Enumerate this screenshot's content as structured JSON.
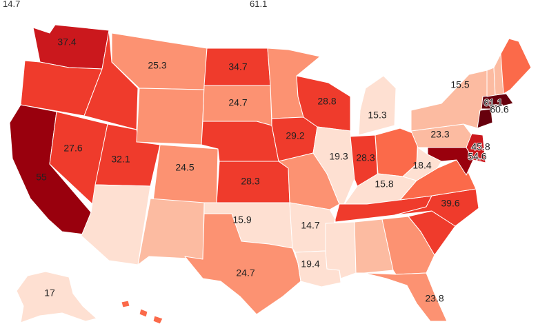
{
  "legend": {
    "min": "14.7",
    "max": "61.1"
  },
  "colors": {
    "scale": [
      "#fee0d2",
      "#fcbba1",
      "#fc9272",
      "#fb6a4a",
      "#ef3b2c",
      "#cb181d",
      "#99000d",
      "#67000d"
    ],
    "border": "#ffffff"
  },
  "states": [
    {
      "id": "WA",
      "value": "37.4"
    },
    {
      "id": "OR",
      "value": ""
    },
    {
      "id": "CA",
      "value": "55"
    },
    {
      "id": "ID",
      "value": ""
    },
    {
      "id": "NV",
      "value": "27.6"
    },
    {
      "id": "UT",
      "value": "32.1"
    },
    {
      "id": "AZ",
      "value": ""
    },
    {
      "id": "MT",
      "value": "25.3"
    },
    {
      "id": "WY",
      "value": ""
    },
    {
      "id": "CO",
      "value": "24.5"
    },
    {
      "id": "NM",
      "value": ""
    },
    {
      "id": "ND",
      "value": "34.7"
    },
    {
      "id": "SD",
      "value": "24.7"
    },
    {
      "id": "NE",
      "value": ""
    },
    {
      "id": "KS",
      "value": "28.3"
    },
    {
      "id": "OK",
      "value": "15.9"
    },
    {
      "id": "TX",
      "value": "24.7"
    },
    {
      "id": "MN",
      "value": ""
    },
    {
      "id": "IA",
      "value": "29.2"
    },
    {
      "id": "MO",
      "value": ""
    },
    {
      "id": "AR",
      "value": "14.7"
    },
    {
      "id": "LA",
      "value": "19.4"
    },
    {
      "id": "WI",
      "value": "28.8"
    },
    {
      "id": "IL",
      "value": "19.3"
    },
    {
      "id": "MI",
      "value": "15.3"
    },
    {
      "id": "IN",
      "value": "28.3"
    },
    {
      "id": "OH",
      "value": ""
    },
    {
      "id": "KY",
      "value": "15.8"
    },
    {
      "id": "TN",
      "value": ""
    },
    {
      "id": "MS",
      "value": ""
    },
    {
      "id": "AL",
      "value": ""
    },
    {
      "id": "GA",
      "value": ""
    },
    {
      "id": "FL",
      "value": "23.8"
    },
    {
      "id": "SC",
      "value": ""
    },
    {
      "id": "NC",
      "value": "39.6"
    },
    {
      "id": "VA",
      "value": ""
    },
    {
      "id": "WV",
      "value": "18.4"
    },
    {
      "id": "PA",
      "value": "23.3"
    },
    {
      "id": "NY",
      "value": "15.5"
    },
    {
      "id": "NJ",
      "value": "45.8"
    },
    {
      "id": "MD",
      "value": "54.6"
    },
    {
      "id": "MA",
      "value": "61.1"
    },
    {
      "id": "CT",
      "value": "60.6"
    },
    {
      "id": "VT",
      "value": ""
    },
    {
      "id": "NH",
      "value": ""
    },
    {
      "id": "ME",
      "value": ""
    },
    {
      "id": "AK",
      "value": "17"
    },
    {
      "id": "HI",
      "value": ""
    }
  ]
}
